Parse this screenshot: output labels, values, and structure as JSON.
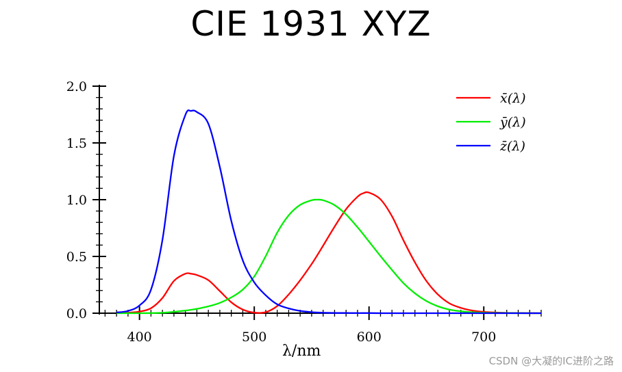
{
  "title": "CIE 1931 XYZ",
  "watermark": "CSDN @大凝的IC进阶之路",
  "chart_data": {
    "type": "line",
    "title": "CIE 1931 XYZ",
    "xlabel": "λ/nm",
    "ylabel": "",
    "xlim": [
      365,
      750
    ],
    "ylim": [
      0,
      2.0
    ],
    "x_ticks": [
      400,
      500,
      600,
      700
    ],
    "y_ticks": [
      0.0,
      0.5,
      1.0,
      1.5,
      2.0
    ],
    "x_tick_labels": [
      "400",
      "500",
      "600",
      "700"
    ],
    "y_tick_labels": [
      "0.0",
      "0.5",
      "1.0",
      "1.5",
      "2.0"
    ],
    "grid": false,
    "legend_position": "top-right",
    "x": [
      380,
      390,
      400,
      410,
      420,
      430,
      440,
      445,
      450,
      460,
      470,
      480,
      490,
      500,
      510,
      520,
      530,
      540,
      550,
      555,
      560,
      570,
      580,
      590,
      595,
      600,
      610,
      620,
      630,
      640,
      650,
      660,
      670,
      680,
      690,
      700,
      720,
      750
    ],
    "series": [
      {
        "name": "x̄(λ)",
        "color": "#ff0000",
        "values": [
          0.001,
          0.004,
          0.014,
          0.044,
          0.134,
          0.284,
          0.348,
          0.347,
          0.336,
          0.291,
          0.195,
          0.096,
          0.032,
          0.005,
          0.009,
          0.063,
          0.165,
          0.29,
          0.433,
          0.512,
          0.595,
          0.762,
          0.916,
          1.026,
          1.057,
          1.062,
          1.003,
          0.854,
          0.642,
          0.448,
          0.284,
          0.165,
          0.087,
          0.047,
          0.023,
          0.011,
          0.003,
          0.0
        ]
      },
      {
        "name": "ȳ(λ)",
        "color": "#00ee00",
        "values": [
          0.0,
          0.0,
          0.0,
          0.001,
          0.004,
          0.012,
          0.023,
          0.03,
          0.038,
          0.06,
          0.091,
          0.139,
          0.208,
          0.323,
          0.503,
          0.71,
          0.862,
          0.954,
          0.995,
          1.0,
          0.995,
          0.952,
          0.87,
          0.757,
          0.695,
          0.631,
          0.503,
          0.381,
          0.265,
          0.175,
          0.107,
          0.061,
          0.032,
          0.017,
          0.008,
          0.004,
          0.001,
          0.0
        ]
      },
      {
        "name": "z̄(λ)",
        "color": "#0000ff",
        "values": [
          0.006,
          0.02,
          0.068,
          0.207,
          0.646,
          1.386,
          1.747,
          1.782,
          1.772,
          1.669,
          1.288,
          0.813,
          0.465,
          0.272,
          0.158,
          0.078,
          0.042,
          0.02,
          0.009,
          0.006,
          0.004,
          0.002,
          0.002,
          0.001,
          0.001,
          0.001,
          0.0,
          0.0,
          0.0,
          0.0,
          0.0,
          0.0,
          0.0,
          0.0,
          0.0,
          0.0,
          0.0,
          0.0
        ]
      }
    ]
  }
}
